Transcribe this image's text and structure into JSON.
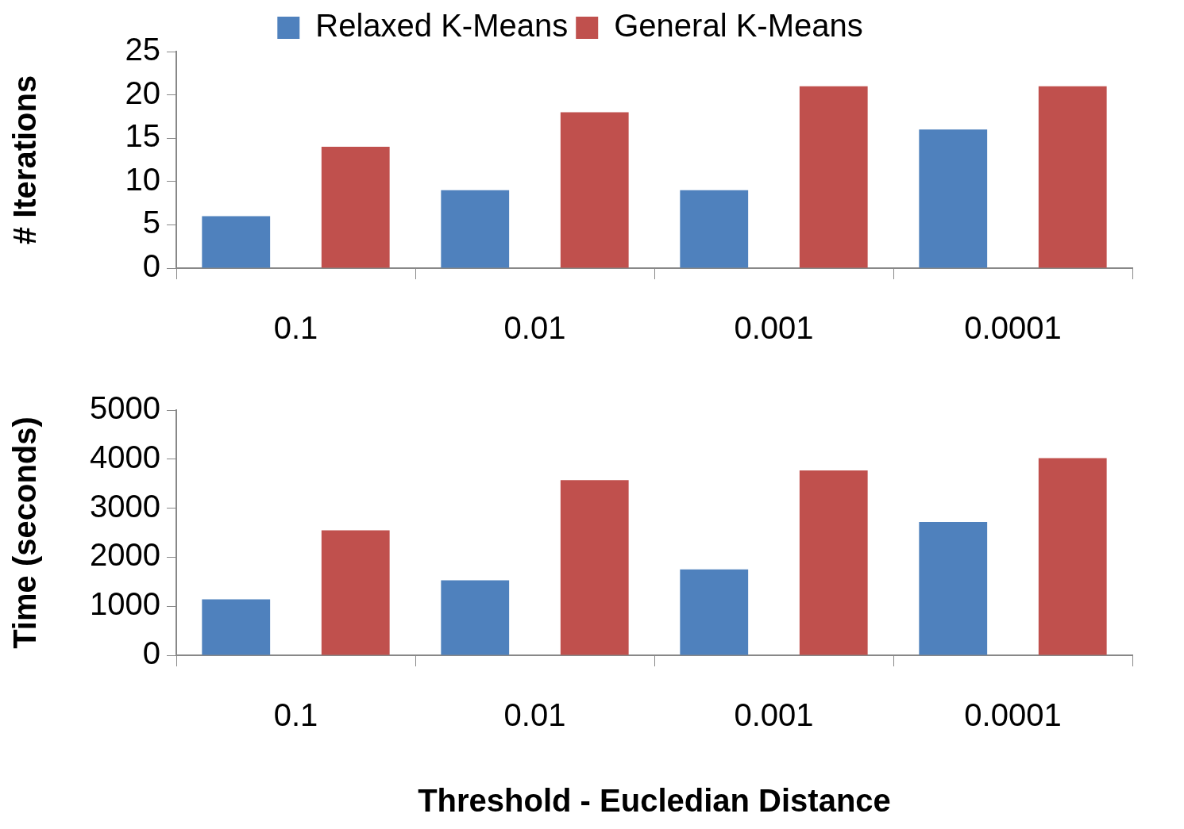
{
  "chart_data": [
    {
      "type": "bar",
      "ylabel": "# Iterations",
      "categories": [
        "0.1",
        "0.01",
        "0.001",
        "0.0001"
      ],
      "ylim": [
        0,
        25
      ],
      "yticks": [
        0,
        5,
        10,
        15,
        20,
        25
      ],
      "legend": "top",
      "series": [
        {
          "name": "Relaxed K-Means",
          "color": "#4f81bd",
          "values": [
            6,
            9,
            9,
            16
          ]
        },
        {
          "name": "General K-Means",
          "color": "#c0504d",
          "values": [
            14,
            18,
            21,
            21
          ]
        }
      ]
    },
    {
      "type": "bar",
      "ylabel": "Time (seconds)",
      "xlabel": "Threshold - Eucledian Distance",
      "categories": [
        "0.1",
        "0.01",
        "0.001",
        "0.0001"
      ],
      "ylim": [
        0,
        5000
      ],
      "yticks": [
        0,
        1000,
        2000,
        3000,
        4000,
        5000
      ],
      "series": [
        {
          "color": "#4f81bd",
          "values": [
            1140,
            1530,
            1750,
            2720
          ]
        },
        {
          "color": "#c0504d",
          "values": [
            2550,
            3570,
            3770,
            4020
          ]
        }
      ]
    }
  ]
}
